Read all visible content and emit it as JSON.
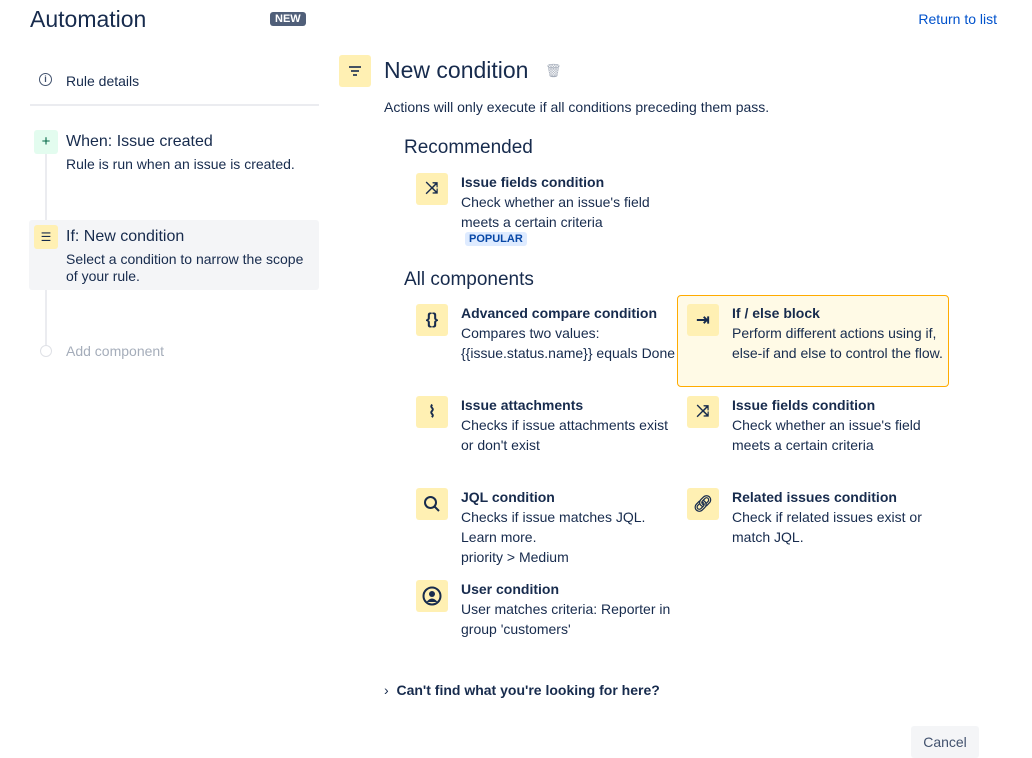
{
  "header": {
    "title": "Automation",
    "badge": "NEW",
    "return_link": "Return to list"
  },
  "sidebar": {
    "rule_details": "Rule details",
    "steps": [
      {
        "title": "When: Issue created",
        "description": "Rule is run when an issue is created.",
        "icon": "plus-icon"
      },
      {
        "title": "If: New condition",
        "description": "Select a condition to narrow the scope of your rule.",
        "icon": "filter-icon",
        "selected": true
      }
    ],
    "add_component": "Add component"
  },
  "main": {
    "title": "New condition",
    "subtitle": "Actions will only execute if all conditions preceding them pass.",
    "recommended_heading": "Recommended",
    "recommended": [
      {
        "title": "Issue fields condition",
        "description": "Check whether an issue's field meets a certain criteria",
        "badge": "POPULAR",
        "icon": "shuffle-icon"
      }
    ],
    "all_heading": "All components",
    "components": [
      {
        "title": "Advanced compare condition",
        "description": "Compares two values: {{issue.status.name}} equals Done",
        "icon": "braces-icon"
      },
      {
        "title": "If / else block",
        "description": "Perform different actions using if, else-if and else to control the flow.",
        "icon": "branch-icon",
        "highlighted": true
      },
      {
        "title": "Issue attachments",
        "description": "Checks if issue attachments exist or don't exist",
        "icon": "paperclip-icon"
      },
      {
        "title": "Issue fields condition",
        "description": "Check whether an issue's field meets a certain criteria",
        "icon": "shuffle-icon"
      },
      {
        "title": "JQL condition",
        "description": "Checks if issue matches JQL. Learn more.\npriority > Medium",
        "icon": "search-icon"
      },
      {
        "title": "Related issues condition",
        "description": "Check if related issues exist or match JQL.",
        "icon": "link-icon"
      },
      {
        "title": "User condition",
        "description": "User matches criteria: Reporter in group 'customers'",
        "icon": "user-icon"
      }
    ],
    "cant_find": "Can't find what you're looking for here?",
    "cancel": "Cancel"
  }
}
